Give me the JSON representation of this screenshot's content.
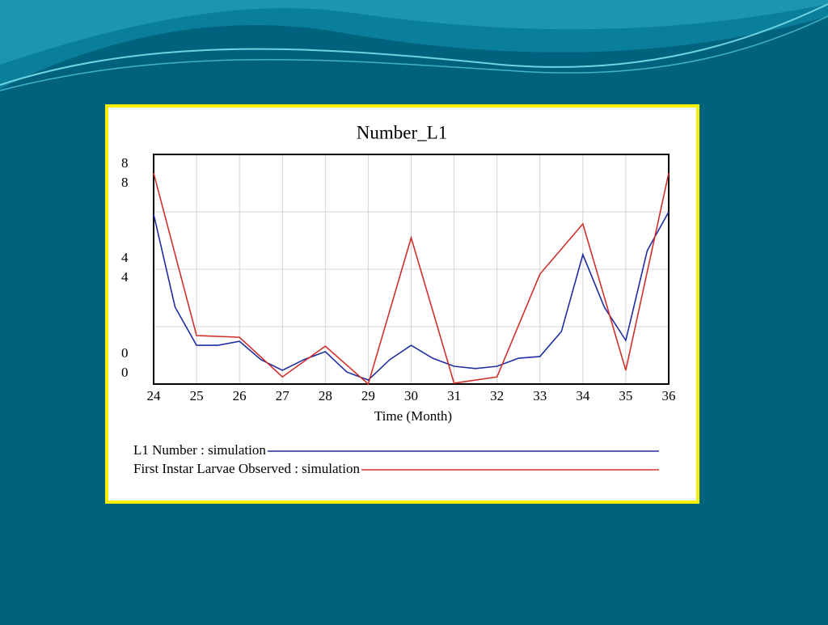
{
  "chart_data": {
    "type": "line",
    "title": "Number_L1",
    "x_label": "Time (Month)",
    "xlim": [
      24,
      36
    ],
    "xticks": [
      24,
      25,
      26,
      27,
      28,
      29,
      30,
      31,
      32,
      33,
      34,
      35,
      36
    ],
    "ylim": [
      0,
      8
    ],
    "yticks": [
      0,
      4,
      8
    ],
    "y2lim": [
      0,
      8
    ],
    "y2ticks": [
      0,
      4,
      8
    ],
    "ygrid": [
      0,
      2,
      4,
      6,
      8
    ],
    "grid": true,
    "series": [
      {
        "name": "L1 Number : simulation",
        "color": "#1f2fa0",
        "x": [
          24,
          24.5,
          25,
          25.5,
          26,
          26.5,
          27,
          27.5,
          28,
          28.5,
          29,
          29.5,
          30,
          30.5,
          31,
          31.5,
          32,
          32.5,
          33,
          33.5,
          34,
          34.5,
          35,
          35.5,
          36
        ],
        "values": [
          5.92,
          2.68,
          1.35,
          1.35,
          1.49,
          0.85,
          0.48,
          0.85,
          1.13,
          0.42,
          0.14,
          0.85,
          1.35,
          0.9,
          0.62,
          0.54,
          0.62,
          0.9,
          0.96,
          1.83,
          4.51,
          2.68,
          1.52,
          4.65,
          6.0
        ]
      },
      {
        "name": "First Instar Larvae Observed : simulation",
        "color": "#d0302a",
        "axis": "y2",
        "x": [
          24,
          25,
          26,
          27,
          28,
          29,
          30,
          31,
          32,
          33,
          34,
          35,
          36
        ],
        "values": [
          7.35,
          1.69,
          1.63,
          0.25,
          1.32,
          0,
          5.1,
          0.03,
          0.25,
          3.83,
          5.58,
          0.48,
          7.35
        ]
      }
    ]
  }
}
